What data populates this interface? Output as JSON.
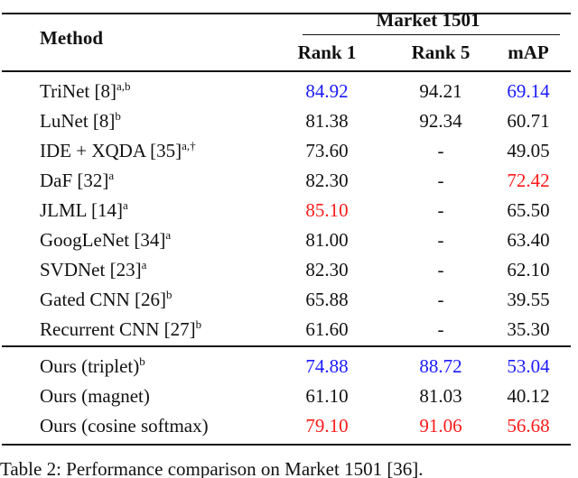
{
  "table": {
    "header": {
      "title": "Method",
      "group": "Market 1501",
      "columns": [
        "Rank 1",
        "Rank 5",
        "mAP"
      ]
    },
    "groups": [
      {
        "rows": [
          {
            "method": "TriNet [8]",
            "sup": "a,b",
            "cells": [
              {
                "text": "84.92",
                "color": "#1a1aff"
              },
              {
                "text": "94.21"
              },
              {
                "text": "69.14",
                "color": "#1a1aff"
              }
            ]
          },
          {
            "method": "LuNet [8]",
            "sup": "b",
            "cells": [
              {
                "text": "81.38"
              },
              {
                "text": "92.34"
              },
              {
                "text": "60.71"
              }
            ]
          },
          {
            "method": "IDE + XQDA [35]",
            "sup": "a,†",
            "cells": [
              {
                "text": "73.60"
              },
              {
                "text": "-"
              },
              {
                "text": "49.05"
              }
            ]
          },
          {
            "method": "DaF [32]",
            "sup": "a",
            "cells": [
              {
                "text": "82.30"
              },
              {
                "text": "-"
              },
              {
                "text": "72.42",
                "color": "#ff1a1a"
              }
            ]
          },
          {
            "method": "JLML [14]",
            "sup": "a",
            "cells": [
              {
                "text": "85.10",
                "color": "#ff1a1a"
              },
              {
                "text": "-"
              },
              {
                "text": "65.50"
              }
            ]
          },
          {
            "method": "GoogLeNet [34]",
            "sup": "a",
            "cells": [
              {
                "text": "81.00"
              },
              {
                "text": "-"
              },
              {
                "text": "63.40"
              }
            ]
          },
          {
            "method": "SVDNet [23]",
            "sup": "a",
            "cells": [
              {
                "text": "82.30"
              },
              {
                "text": "-"
              },
              {
                "text": "62.10"
              }
            ]
          },
          {
            "method": "Gated CNN [26]",
            "sup": "b",
            "cells": [
              {
                "text": "65.88"
              },
              {
                "text": "-"
              },
              {
                "text": "39.55"
              }
            ]
          },
          {
            "method": "Recurrent CNN [27]",
            "sup": "b",
            "cells": [
              {
                "text": "61.60"
              },
              {
                "text": "-"
              },
              {
                "text": "35.30"
              }
            ]
          }
        ]
      },
      {
        "rows": [
          {
            "method": "Ours (triplet)",
            "sup": "b",
            "cells": [
              {
                "text": "74.88",
                "color": "#1a1aff"
              },
              {
                "text": "88.72",
                "color": "#1a1aff"
              },
              {
                "text": "53.04",
                "color": "#1a1aff"
              }
            ]
          },
          {
            "method": "Ours (magnet)",
            "cells": [
              {
                "text": "61.10"
              },
              {
                "text": "81.03"
              },
              {
                "text": "40.12"
              }
            ]
          },
          {
            "method": "Ours (cosine softmax)",
            "cells": [
              {
                "text": "79.10",
                "color": "#ff1a1a"
              },
              {
                "text": "91.06",
                "color": "#ff1a1a"
              },
              {
                "text": "56.68",
                "color": "#ff1a1a"
              }
            ]
          }
        ]
      }
    ]
  },
  "caption": "Table 2: Performance comparison on Market 1501 [36]."
}
